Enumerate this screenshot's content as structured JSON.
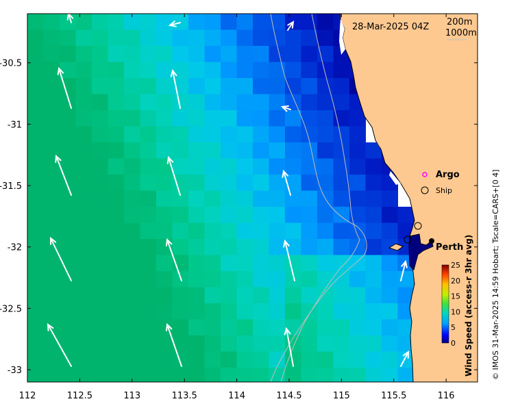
{
  "map": {
    "timestamp": "28-Mar-2025 04Z",
    "contours": [
      "200m",
      "1000m"
    ],
    "x_ticks": [
      "112",
      "112.5",
      "113",
      "113.5",
      "114",
      "114.5",
      "115",
      "115.5",
      "116"
    ],
    "y_ticks": [
      "-30.5",
      "-31",
      "-31.5",
      "-32",
      "-32.5",
      "-33"
    ],
    "x_range": [
      112,
      116.3
    ],
    "y_range": [
      -33.1,
      -30.1
    ],
    "legend": {
      "argo": "Argo",
      "ship": "Ship"
    },
    "city": "Perth",
    "colorbar": {
      "title": "Wind Speed (access-r 3hr avg)",
      "ticks": [
        "0",
        "5",
        "10",
        "15",
        "20",
        "25"
      ],
      "range": [
        0,
        25
      ]
    },
    "credit": "© IMOS 31-Mar-2025 14:59 Hobart; Tscale=CARS+[0 4]",
    "colors": {
      "land": "#fdc991",
      "argo_marker": "#ff00ff",
      "arrow": "#ffffff",
      "contour": "#bfbfbf"
    }
  }
}
